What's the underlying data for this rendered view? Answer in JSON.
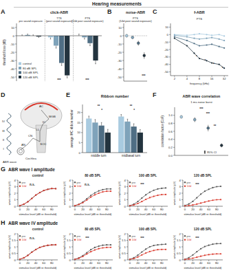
{
  "chart_data": [
    {
      "panel": "A",
      "suptitle": "Hearing measurements",
      "type": "bar",
      "title": "click-ABR",
      "y_label": "threshold loss (dB)",
      "categories": [
        "pre sound exposure",
        "TTS (post sound exposure)",
        "PTS (14d post sound exposure)"
      ],
      "series": [
        {
          "name": "control",
          "color": "#a9cbe0",
          "values": [
            0,
            -2,
            0
          ],
          "errors": [
            1,
            2,
            2
          ]
        },
        {
          "name": "80 dB SPL",
          "color": "#7fa3ba",
          "values": [
            1,
            -12,
            -2
          ],
          "errors": [
            1,
            3,
            2
          ]
        },
        {
          "name": "100 dB SPL",
          "color": "#4f6e84",
          "values": [
            0,
            -33,
            -9
          ],
          "errors": [
            1,
            3,
            3
          ]
        },
        {
          "name": "120 dB SPL",
          "color": "#23343f",
          "values": [
            -1,
            -48,
            -30
          ],
          "errors": [
            1,
            3,
            4
          ]
        }
      ],
      "ylim": [
        -55,
        15
      ],
      "yticks": [
        10,
        0,
        -10,
        -20,
        -30,
        -40,
        -50
      ],
      "legend": "bottom-left",
      "annotations": [
        "***",
        "***"
      ]
    },
    {
      "panel": "B",
      "type": "scatter",
      "title": "noise-ABR",
      "subtitle": "PTS (14d post sound exposure)",
      "categories": [
        null,
        null,
        null,
        null
      ],
      "values": [
        0,
        -2,
        -9,
        -24
      ],
      "errors": [
        2,
        2,
        3,
        4
      ],
      "colors": [
        "#a9cbe0",
        "#7fa3ba",
        "#4f6e84",
        "#23343f"
      ],
      "marker": "circle",
      "ylim": [
        -55,
        15
      ],
      "yticks": [
        10,
        0,
        -10,
        -20,
        -30,
        -40,
        -50
      ],
      "annotations": [
        "***"
      ]
    },
    {
      "panel": "C",
      "type": "line",
      "title": "f-ABR",
      "subtitle": "PTS",
      "x_label": "frequency (kHz)",
      "log": "x",
      "x": [
        2,
        4,
        6,
        8,
        12,
        16,
        24,
        32
      ],
      "xlim": [
        1.6,
        40
      ],
      "xticks": [
        2,
        4,
        8,
        16,
        32
      ],
      "series": [
        {
          "color": "#a9cbe0",
          "values": [
            0,
            -1,
            0,
            1,
            0,
            -1,
            0,
            -2
          ]
        },
        {
          "color": "#7fa3ba",
          "values": [
            -1,
            -3,
            -5,
            -6,
            -5,
            -4,
            -6,
            -8
          ]
        },
        {
          "color": "#4f6e84",
          "values": [
            -3,
            -8,
            -12,
            -15,
            -14,
            -13,
            -16,
            -18
          ]
        },
        {
          "color": "#23343f",
          "values": [
            -5,
            -15,
            -25,
            -32,
            -35,
            -38,
            -40,
            -45
          ]
        }
      ],
      "marker": "circle",
      "ylim": [
        -55,
        15
      ],
      "yticks": [
        10,
        0,
        -10,
        -20,
        -30,
        -40,
        -50
      ],
      "annotations": [
        "*",
        "*",
        "*",
        "*"
      ]
    },
    {
      "panel": "E",
      "type": "bar",
      "title": "Ribbon number",
      "y_label": "average IHC ribbon number",
      "categories": [
        "middle turn",
        "midbasal turn"
      ],
      "series": [
        {
          "color": "#a9cbe0",
          "values": [
            17,
            18
          ],
          "errors": [
            1.2,
            1
          ]
        },
        {
          "color": "#7fa3ba",
          "values": [
            15,
            15.5
          ],
          "errors": [
            1.5,
            1.2
          ]
        },
        {
          "color": "#4f6e84",
          "values": [
            13.5,
            13
          ],
          "errors": [
            1.5,
            1.4
          ]
        },
        {
          "color": "#23343f",
          "values": [
            10,
            10
          ],
          "errors": [
            1.6,
            1.5
          ]
        }
      ],
      "ylim": [
        0,
        24
      ],
      "yticks": [
        0,
        5,
        10,
        15,
        20
      ],
      "annotations": [
        "**",
        "*",
        "**",
        "*"
      ]
    },
    {
      "panel": "F",
      "type": "scatter",
      "title": "ABR wave correlation",
      "subtitle": "1 ms noise burst",
      "y_label": "correlation factor (CoF)",
      "categories": [
        null,
        null,
        null,
        null
      ],
      "values": [
        0.96,
        0.89,
        0.68,
        0.25
      ],
      "errors": [
        0.04,
        0.06,
        0.08,
        0.05
      ],
      "colors": [
        "#a9cbe0",
        "#7fa3ba",
        "#4f6e84",
        "#23343f"
      ],
      "marker": "circle",
      "ylim": [
        0,
        1.2
      ],
      "yticks": [
        {
          "value": 0,
          "label": "0.0"
        },
        0.2,
        0.4,
        0.6,
        0.8,
        {
          "value": 1,
          "label": "1.0"
        }
      ],
      "annotations": [
        "***",
        "***",
        "**"
      ],
      "ci_label": "95% CI"
    },
    {
      "panel": "G",
      "suptitle": "ABR wave I amplitude",
      "type": "line",
      "title": "control",
      "x_label": "stimulus level (dB re threshold)",
      "y_label": "wave amplitude (µV)",
      "x": [
        0,
        10,
        20,
        30,
        40,
        50,
        60,
        70,
        80,
        90
      ],
      "xlim": [
        -5,
        95
      ],
      "xticks": [
        0,
        20,
        40,
        60,
        80
      ],
      "ylim": [
        0,
        4
      ],
      "yticks": [
        0,
        1,
        2,
        3,
        4
      ],
      "marker": "circle",
      "legend": "top-left",
      "series": [
        {
          "name": "pre",
          "color": "#555555",
          "values": [
            0.1,
            0.3,
            0.7,
            1.2,
            1.7,
            2.1,
            2.4,
            2.6,
            2.7,
            2.7
          ]
        },
        {
          "name": "14d",
          "color": "#d9372b",
          "values": [
            0.1,
            0.32,
            0.68,
            1.18,
            1.72,
            2.08,
            2.42,
            2.58,
            2.72,
            2.68
          ]
        }
      ],
      "annotations": [
        "n.s."
      ]
    },
    {
      "type": "line",
      "title": "80 dB SPL",
      "x_label": "stimulus level (dB re threshold)",
      "y_label": "wave amplitude (µV)",
      "x": [
        0,
        10,
        20,
        30,
        40,
        50,
        60,
        70,
        80,
        90
      ],
      "xlim": [
        -5,
        95
      ],
      "xticks": [
        0,
        20,
        40,
        60,
        80
      ],
      "ylim": [
        0,
        4
      ],
      "yticks": [
        0,
        1,
        2,
        3,
        4
      ],
      "marker": "circle",
      "legend": "top-left",
      "series": [
        {
          "name": "pre",
          "color": "#555555",
          "values": [
            0.1,
            0.3,
            0.65,
            1.15,
            1.65,
            2.05,
            2.35,
            2.55,
            2.65,
            2.65
          ]
        },
        {
          "name": "14d",
          "color": "#d9372b",
          "values": [
            0.1,
            0.27,
            0.55,
            0.95,
            1.4,
            1.75,
            2.0,
            2.2,
            2.3,
            2.3
          ]
        }
      ],
      "annotations": [
        "n.s."
      ]
    },
    {
      "type": "line",
      "title": "100 dB SPL",
      "x_label": "stimulus level (dB re threshold)",
      "y_label": "wave amplitude (µV)",
      "x": [
        0,
        10,
        20,
        30,
        40,
        50,
        60,
        70,
        80,
        90
      ],
      "xlim": [
        -5,
        95
      ],
      "xticks": [
        0,
        20,
        40,
        60,
        80
      ],
      "ylim": [
        0,
        4
      ],
      "yticks": [
        0,
        1,
        2,
        3,
        4
      ],
      "marker": "circle",
      "legend": "top-left",
      "series": [
        {
          "name": "pre",
          "color": "#555555",
          "values": [
            0.1,
            0.32,
            0.72,
            1.25,
            1.75,
            2.15,
            2.45,
            2.65,
            2.75,
            2.8
          ]
        },
        {
          "name": "14d",
          "color": "#d9372b",
          "values": [
            0.08,
            0.2,
            0.42,
            0.72,
            1.05,
            1.32,
            1.52,
            1.68,
            1.78,
            1.8
          ]
        }
      ],
      "annotations": [
        "***"
      ]
    },
    {
      "type": "line",
      "title": "120 dB SPL",
      "x_label": "stimulus level (dB re threshold)",
      "y_label": "wave amplitude (µV)",
      "x": [
        0,
        10,
        20,
        30,
        40,
        50,
        60,
        70,
        80,
        90
      ],
      "xlim": [
        -5,
        95
      ],
      "xticks": [
        0,
        20,
        40,
        60,
        80
      ],
      "ylim": [
        0,
        4
      ],
      "yticks": [
        0,
        1,
        2,
        3,
        4
      ],
      "marker": "circle",
      "legend": "top-left",
      "series": [
        {
          "name": "pre",
          "color": "#555555",
          "values": [
            0.12,
            0.35,
            0.75,
            1.3,
            1.85,
            2.3,
            2.6,
            2.85,
            3.0,
            3.05
          ]
        },
        {
          "name": "14d",
          "color": "#d9372b",
          "values": [
            0.05,
            0.1,
            0.2,
            0.32,
            0.48,
            0.65,
            0.8,
            0.92,
            1.0,
            1.02
          ]
        }
      ],
      "annotations": [
        "***"
      ]
    },
    {
      "panel": "H",
      "suptitle": "ABR wave IV amplitude",
      "type": "line",
      "title": "control",
      "x_label": "stimulus level (dB re threshold)",
      "y_label": "wave amplitude (µV)",
      "x": [
        0,
        10,
        20,
        30,
        40,
        50,
        60,
        70,
        80,
        90
      ],
      "xlim": [
        -5,
        95
      ],
      "xticks": [
        0,
        20,
        40,
        60,
        80
      ],
      "ylim": [
        0,
        2
      ],
      "yticks": [
        0,
        0.5,
        1,
        1.5,
        2
      ],
      "marker": "circle",
      "legend": "top-left",
      "series": [
        {
          "name": "pre",
          "color": "#555555",
          "values": [
            0.05,
            0.15,
            0.35,
            0.6,
            0.8,
            0.95,
            1.05,
            1.1,
            1.15,
            1.15
          ]
        },
        {
          "name": "14d",
          "color": "#d9372b",
          "values": [
            0.05,
            0.16,
            0.34,
            0.58,
            0.78,
            0.96,
            1.04,
            1.12,
            1.14,
            1.16
          ]
        }
      ],
      "annotations": [
        "n.s."
      ]
    },
    {
      "type": "line",
      "title": "80 dB SPL",
      "x_label": "stimulus level (dB re threshold)",
      "y_label": "wave amplitude (µV)",
      "x": [
        0,
        10,
        20,
        30,
        40,
        50,
        60,
        70,
        80,
        90
      ],
      "xlim": [
        -5,
        95
      ],
      "xticks": [
        0,
        20,
        40,
        60,
        80
      ],
      "ylim": [
        0,
        2
      ],
      "yticks": [
        0,
        0.5,
        1,
        1.5,
        2
      ],
      "marker": "circle",
      "legend": "top-left",
      "series": [
        {
          "name": "pre",
          "color": "#555555",
          "values": [
            0.05,
            0.15,
            0.33,
            0.55,
            0.78,
            0.95,
            1.05,
            1.12,
            1.15,
            1.15
          ]
        },
        {
          "name": "14d",
          "color": "#d9372b",
          "values": [
            0.04,
            0.12,
            0.26,
            0.45,
            0.62,
            0.76,
            0.86,
            0.92,
            0.95,
            0.96
          ]
        }
      ],
      "annotations": [
        "***"
      ]
    },
    {
      "type": "line",
      "title": "100 dB SPL",
      "x_label": "stimulus level (dB re threshold)",
      "y_label": "wave amplitude (µV)",
      "x": [
        0,
        10,
        20,
        30,
        40,
        50,
        60,
        70,
        80,
        90
      ],
      "xlim": [
        -5,
        95
      ],
      "xticks": [
        0,
        20,
        40,
        60,
        80
      ],
      "ylim": [
        0,
        2
      ],
      "yticks": [
        0,
        0.5,
        1,
        1.5,
        2
      ],
      "marker": "circle",
      "legend": "top-left",
      "series": [
        {
          "name": "pre",
          "color": "#555555",
          "values": [
            0.05,
            0.16,
            0.36,
            0.6,
            0.82,
            1.0,
            1.1,
            1.15,
            1.18,
            1.2
          ]
        },
        {
          "name": "14d",
          "color": "#d9372b",
          "values": [
            0.04,
            0.1,
            0.22,
            0.38,
            0.52,
            0.64,
            0.72,
            0.78,
            0.8,
            0.8
          ]
        }
      ],
      "annotations": [
        "***"
      ]
    },
    {
      "type": "line",
      "title": "120 dB SPL",
      "x_label": "stimulus level (dB re threshold)",
      "y_label": "wave amplitude (µV)",
      "x": [
        0,
        10,
        20,
        30,
        40,
        50,
        60,
        70,
        80,
        90
      ],
      "xlim": [
        -5,
        95
      ],
      "xticks": [
        0,
        20,
        40,
        60,
        80
      ],
      "ylim": [
        0,
        2
      ],
      "yticks": [
        0,
        0.5,
        1,
        1.5,
        2
      ],
      "marker": "circle",
      "legend": "top-left",
      "series": [
        {
          "name": "pre",
          "color": "#555555",
          "values": [
            0.05,
            0.17,
            0.38,
            0.62,
            0.85,
            1.02,
            1.12,
            1.2,
            1.24,
            1.25
          ]
        },
        {
          "name": "14d",
          "color": "#d9372b",
          "values": [
            0.03,
            0.07,
            0.13,
            0.2,
            0.28,
            0.35,
            0.4,
            0.44,
            0.46,
            0.46
          ]
        }
      ],
      "annotations": [
        "***"
      ]
    }
  ],
  "diagram": {
    "panel": "D",
    "wave_label": "ABR wave",
    "peaks": [
      "IV",
      "III",
      "II",
      "I"
    ],
    "structures": [
      "AC",
      "MGB",
      "IC",
      "LL",
      "SOC",
      "CN",
      "AN",
      "Cochlea"
    ]
  }
}
